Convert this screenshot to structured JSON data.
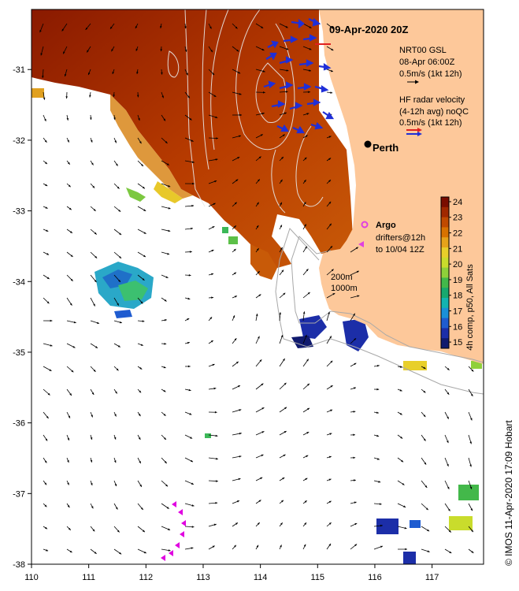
{
  "title": "09-Apr-2020 20Z",
  "city": {
    "name": "Perth"
  },
  "legend": {
    "wind_line1": "NRT00 GSL",
    "wind_line2": "08-Apr 06:00Z",
    "wind_line3": "0.5m/s (1kt 12h)",
    "radar_line1": "HF radar velocity",
    "radar_line2": "(4-12h avg) noQC",
    "radar_line3": "0.5m/s (1kt 12h)",
    "argo": "Argo",
    "drifters_line1": "drifters@12h",
    "drifters_line2": "to 10/04 12Z",
    "depth_200": "200m",
    "depth_1000": "1000m"
  },
  "colorbar": {
    "label": "4h comp, p50, All Sats",
    "ticks": [
      "24",
      "23",
      "22",
      "21",
      "20",
      "19",
      "18",
      "17",
      "16",
      "15"
    ],
    "colors": [
      "#7a0d00",
      "#a02800",
      "#c04a00",
      "#d87200",
      "#e6a31a",
      "#e8cf2a",
      "#c9dc2c",
      "#8fd03a",
      "#43b84a",
      "#18a86e",
      "#14b4b0",
      "#1a90d8",
      "#1f5cd0",
      "#1c2ea8",
      "#101a6e"
    ],
    "min": 14.6,
    "max": 24.3
  },
  "axes": {
    "x_ticks": [
      "110",
      "111",
      "112",
      "113",
      "114",
      "115",
      "116",
      "117"
    ],
    "y_ticks": [
      "-31",
      "-32",
      "-33",
      "-34",
      "-35",
      "-36",
      "-37",
      "-38"
    ],
    "lon_range": [
      110,
      117.9
    ],
    "lat_range": [
      -38,
      -30.15
    ]
  },
  "credit": "© IMOS 11-Apr-2020 17:09 Hobart",
  "colors": {
    "land": "#fdc89a",
    "ocean": "#ffffff",
    "sst_warm": "#8a1a00",
    "radar_arrow": "#1f2fd8",
    "argo": "#e040e0",
    "drifter": "#e000e0",
    "bathymetry": "#b0b0b0"
  }
}
